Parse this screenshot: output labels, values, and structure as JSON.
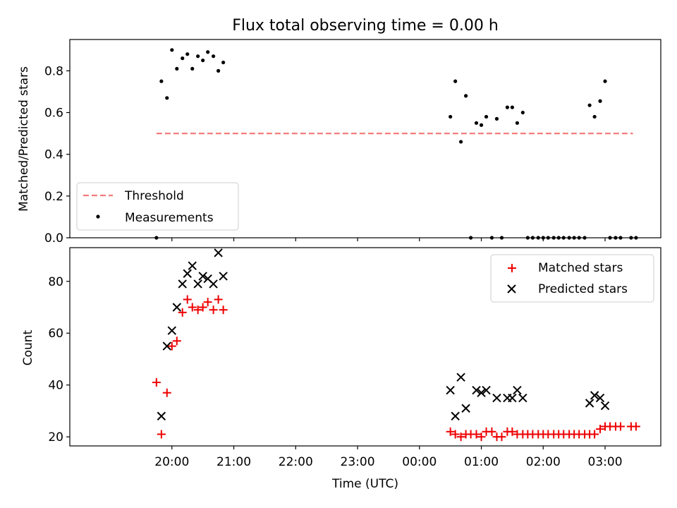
{
  "chart_data": [
    {
      "type": "scatter",
      "title": "Flux total observing time = 0.00 h",
      "ylabel": "Matched/Predicted stars",
      "xlabel": "",
      "x_axis": "time (hours relative to 00:00 UTC)",
      "xlim": [
        -5.65,
        3.9
      ],
      "ylim": [
        0,
        0.95
      ],
      "yticks": [
        0.0,
        0.2,
        0.4,
        0.6,
        0.8
      ],
      "ytick_labels": [
        "0.0",
        "0.2",
        "0.4",
        "0.6",
        "0.8"
      ],
      "legend": {
        "placement": "lower-left",
        "entries": [
          "Threshold",
          "Measurements"
        ]
      },
      "threshold": {
        "name": "Threshold",
        "value": 0.5,
        "x": [
          -4.25,
          3.45
        ],
        "color": "#f47c7c"
      },
      "measurements": {
        "name": "Measurements",
        "color": "#000000",
        "x": [
          -4.25,
          -4.17,
          -4.08,
          -4.0,
          -3.92,
          -3.83,
          -3.75,
          -3.67,
          -3.58,
          -3.5,
          -3.42,
          -3.33,
          -3.25,
          -3.17,
          0.5,
          0.58,
          0.67,
          0.75,
          0.83,
          0.92,
          1.0,
          1.08,
          1.17,
          1.25,
          1.33,
          1.42,
          1.5,
          1.58,
          1.67,
          1.75,
          1.83,
          1.92,
          2.0,
          2.08,
          2.17,
          2.25,
          2.33,
          2.42,
          2.5,
          2.58,
          2.67,
          2.75,
          2.83,
          2.92,
          3.0,
          3.08,
          3.17,
          3.25,
          3.42,
          3.5
        ],
        "y": [
          0.0,
          0.75,
          0.67,
          0.9,
          0.81,
          0.86,
          0.88,
          0.81,
          0.87,
          0.85,
          0.89,
          0.87,
          0.8,
          0.84,
          0.58,
          0.75,
          0.46,
          0.68,
          0.0,
          0.55,
          0.54,
          0.58,
          0.0,
          0.57,
          0.0,
          0.625,
          0.625,
          0.55,
          0.6,
          0.0,
          0.0,
          0.0,
          0.0,
          0.0,
          0.0,
          0.0,
          0.0,
          0.0,
          0.0,
          0.0,
          0.0,
          0.635,
          0.58,
          0.655,
          0.75,
          0.0,
          0.0,
          0.0,
          0.0,
          0.0
        ]
      }
    },
    {
      "type": "scatter",
      "title": "",
      "ylabel": "Count",
      "xlabel": "Time (UTC)",
      "xlim": [
        -5.65,
        3.9
      ],
      "ylim": [
        16.5,
        93
      ],
      "yticks": [
        20,
        40,
        60,
        80
      ],
      "ytick_labels": [
        "20",
        "40",
        "60",
        "80"
      ],
      "xticks": [
        -4,
        -3,
        -2,
        -1,
        0,
        1,
        2,
        3
      ],
      "xtick_labels": [
        "20:00",
        "21:00",
        "22:00",
        "23:00",
        "00:00",
        "01:00",
        "02:00",
        "03:00"
      ],
      "legend": {
        "placement": "upper-right",
        "entries": [
          "Matched stars",
          "Predicted stars"
        ]
      },
      "series": [
        {
          "name": "Matched stars",
          "marker": "plus",
          "color": "#ee0000",
          "x": [
            -4.25,
            -4.17,
            -4.08,
            -4.0,
            -3.92,
            -3.83,
            -3.75,
            -3.67,
            -3.58,
            -3.5,
            -3.42,
            -3.33,
            -3.25,
            -3.17,
            0.5,
            0.58,
            0.67,
            0.75,
            0.83,
            0.92,
            1.0,
            1.08,
            1.17,
            1.25,
            1.33,
            1.42,
            1.5,
            1.58,
            1.67,
            1.75,
            1.83,
            1.92,
            2.0,
            2.08,
            2.17,
            2.25,
            2.33,
            2.42,
            2.5,
            2.58,
            2.67,
            2.75,
            2.83,
            2.92,
            3.0,
            3.08,
            3.17,
            3.25,
            3.42,
            3.5
          ],
          "y": [
            41,
            21,
            37,
            55,
            57,
            68,
            73,
            70,
            69,
            70,
            72,
            69,
            73,
            69,
            22,
            21,
            20,
            21,
            21,
            21,
            20,
            22,
            22,
            20,
            20,
            22,
            22,
            21,
            21,
            21,
            21,
            21,
            21,
            21,
            21,
            21,
            21,
            21,
            21,
            21,
            21,
            21,
            21,
            23,
            24,
            24,
            24,
            24,
            24,
            24
          ]
        },
        {
          "name": "Predicted stars",
          "marker": "x",
          "color": "#000000",
          "x": [
            -4.17,
            -4.08,
            -4.0,
            -3.92,
            -3.83,
            -3.75,
            -3.67,
            -3.58,
            -3.5,
            -3.42,
            -3.33,
            -3.25,
            -3.17,
            0.5,
            0.58,
            0.67,
            0.75,
            0.92,
            1.0,
            1.08,
            1.25,
            1.42,
            1.5,
            1.58,
            1.67,
            2.75,
            2.83,
            2.92,
            3.0
          ],
          "y": [
            28,
            55,
            61,
            70,
            79,
            83,
            86,
            79,
            82,
            81,
            79,
            91,
            82,
            38,
            28,
            43,
            31,
            38,
            37,
            38,
            35,
            35,
            35,
            38,
            35,
            33,
            36,
            35,
            32
          ]
        }
      ]
    }
  ]
}
